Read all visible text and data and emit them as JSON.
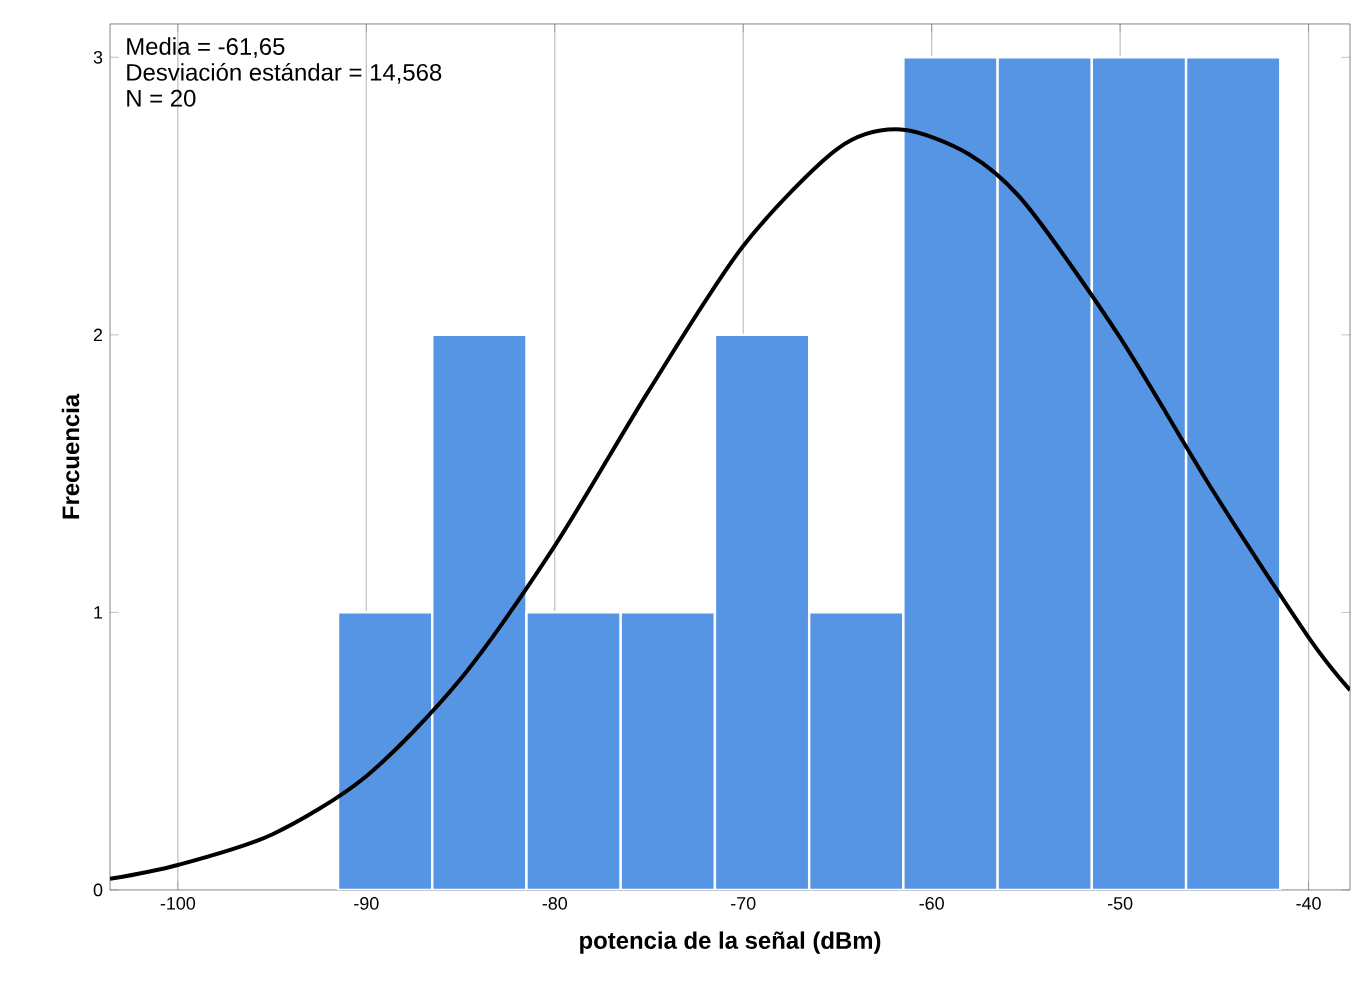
{
  "chart_data": {
    "type": "histogram",
    "xlabel": "potencia de la señal (dBm)",
    "ylabel": "Frecuencia",
    "bins": [
      -91.5,
      -86.5,
      -81.5,
      -76.5,
      -71.5,
      -66.5,
      -61.5,
      -56.5,
      -51.5,
      -46.5,
      -41.5
    ],
    "values": [
      1,
      2,
      1,
      1,
      2,
      1,
      3,
      3,
      3,
      3
    ],
    "color": "#5694e4",
    "series": [
      {
        "type": "line",
        "color": "#000000",
        "x": [
          -103.6,
          -100,
          -95,
          -90,
          -85,
          -80,
          -75,
          -70,
          -65,
          -61.65,
          -58,
          -55,
          -50,
          -45,
          -40,
          -37.8
        ],
        "values": [
          0.04,
          0.09,
          0.2,
          0.41,
          0.76,
          1.24,
          1.8,
          2.32,
          2.67,
          2.74,
          2.65,
          2.47,
          1.99,
          1.43,
          0.91,
          0.72
        ]
      }
    ],
    "annotations": [
      "Media = -61,65",
      "Desviación estándar = 14,568",
      "N = 20"
    ],
    "xlim": [
      -103.6,
      -37.8
    ],
    "ylim": [
      0,
      3.12
    ],
    "xticks": [
      -100,
      -90,
      -80,
      -70,
      -60,
      -50,
      -40
    ],
    "yticks": [
      0,
      1,
      2,
      3
    ],
    "grid": "x"
  }
}
